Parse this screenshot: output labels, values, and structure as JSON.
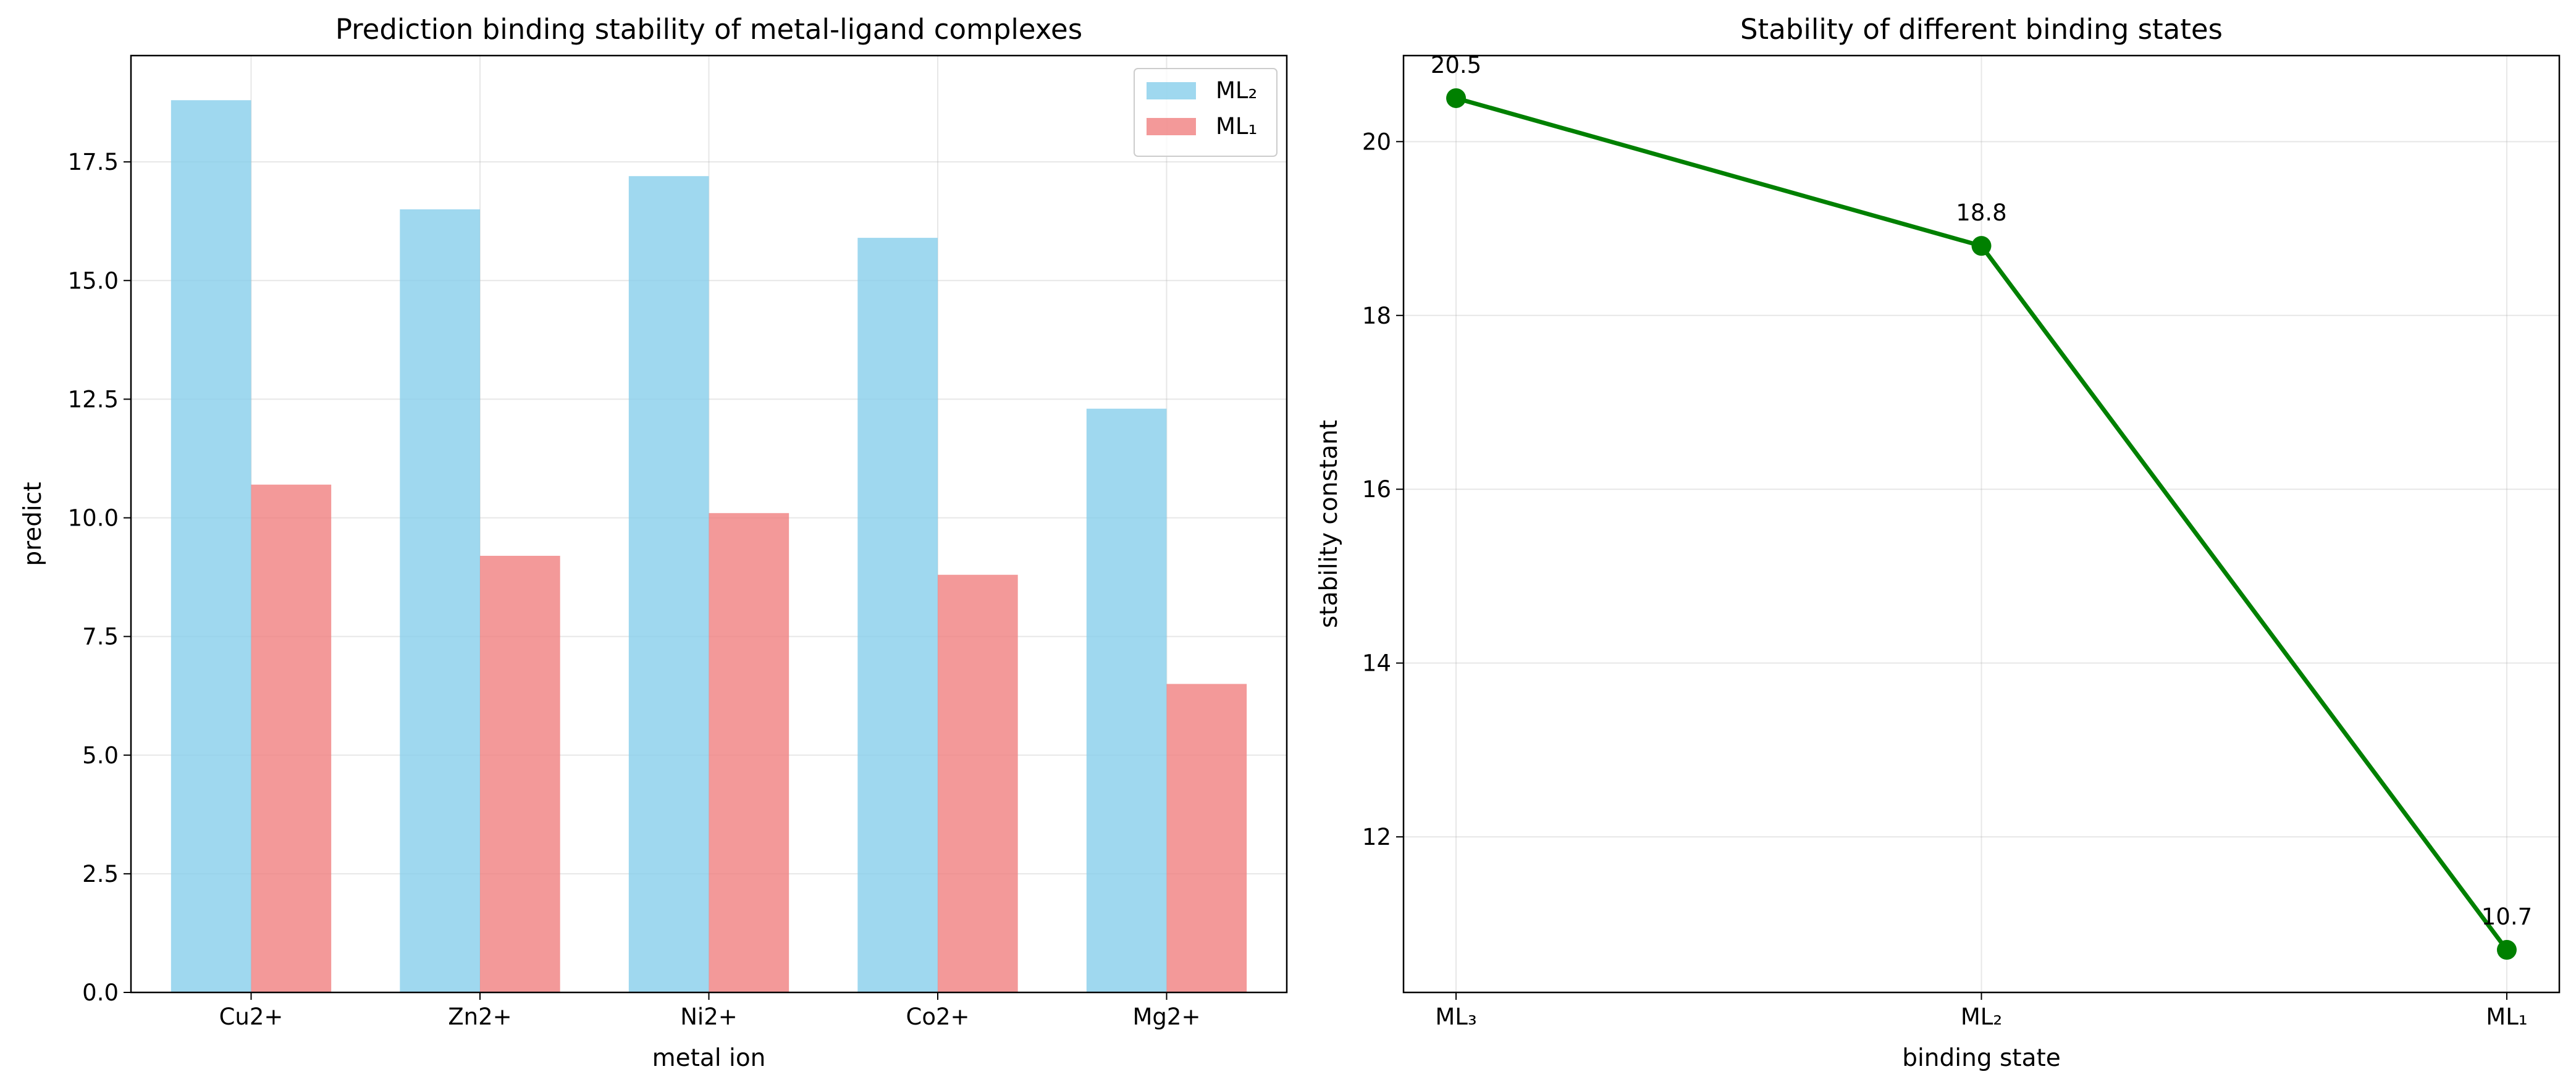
{
  "chart_data": [
    {
      "type": "bar",
      "title": "Prediction binding stability of metal-ligand complexes",
      "xlabel": "metal ion",
      "ylabel": "predict",
      "categories": [
        "Cu2+",
        "Zn2+",
        "Ni2+",
        "Co2+",
        "Mg2+"
      ],
      "series": [
        {
          "name": "ML₂",
          "color": "#87ceeb",
          "values": [
            18.8,
            16.5,
            17.2,
            15.9,
            12.3
          ]
        },
        {
          "name": "ML₁",
          "color": "#f08080",
          "values": [
            10.7,
            9.2,
            10.1,
            8.8,
            6.5
          ]
        }
      ],
      "ylim": [
        0,
        19.74
      ],
      "yticks": [
        0.0,
        2.5,
        5.0,
        7.5,
        10.0,
        12.5,
        15.0,
        17.5
      ],
      "ytick_labels": [
        "0.0",
        "2.5",
        "5.0",
        "7.5",
        "10.0",
        "12.5",
        "15.0",
        "17.5"
      ],
      "grid": true,
      "legend": "top-right"
    },
    {
      "type": "line",
      "title": "Stability of different binding states",
      "xlabel": "binding state",
      "ylabel": "stability constant",
      "categories": [
        "ML₃",
        "ML₂",
        "ML₁"
      ],
      "series": [
        {
          "name": "stability constant",
          "color": "#008000",
          "values": [
            20.5,
            18.8,
            10.7
          ]
        }
      ],
      "data_labels": [
        "20.5",
        "18.8",
        "10.7"
      ],
      "ylim": [
        10.21,
        20.99
      ],
      "yticks": [
        12,
        14,
        16,
        18,
        20
      ],
      "ytick_labels": [
        "12",
        "14",
        "16",
        "18",
        "20"
      ],
      "grid": true
    }
  ]
}
